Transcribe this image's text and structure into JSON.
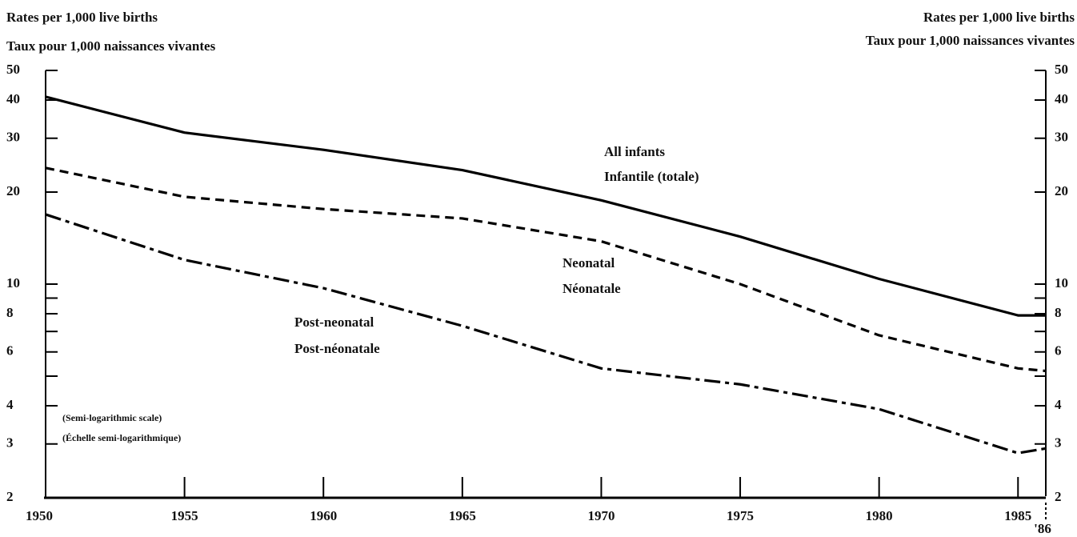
{
  "chart_data": {
    "type": "line",
    "log_scale": true,
    "y_axis_label": [
      "Rates per 1,000 live births",
      "Taux pour 1,000 naissances vivantes"
    ],
    "y2_axis_label": [
      "Rates per 1,000 live births",
      "Taux pour 1,000 naissances vivantes"
    ],
    "annotations": [
      {
        "lines": [
          "All infants",
          "Infantile (totale)"
        ]
      },
      {
        "lines": [
          "Neonatal",
          "Néonatale"
        ]
      },
      {
        "lines": [
          "Post-neonatal",
          "Post-néonatale"
        ]
      },
      {
        "lines": [
          "(Semi-logarithmic scale)",
          "(Échelle semi-logarithmique)"
        ]
      }
    ],
    "x": [
      1950,
      1955,
      1960,
      1965,
      1970,
      1975,
      1980,
      1985,
      1986
    ],
    "xlim": [
      1950,
      1986
    ],
    "xticks": [
      1950,
      1955,
      1960,
      1965,
      1970,
      1975,
      1980,
      1985,
      {
        "value": 1986,
        "label": "'86"
      }
    ],
    "ylim": [
      2,
      50
    ],
    "yticks": [
      2,
      3,
      4,
      6,
      8,
      10,
      20,
      30,
      40,
      50
    ],
    "y_minor_ticks": [
      5,
      7,
      9
    ],
    "y2lim": [
      2,
      50
    ],
    "y2ticks": [
      2,
      3,
      4,
      6,
      8,
      10,
      20,
      30,
      40,
      50
    ],
    "series": [
      {
        "name": "All infants",
        "color": "#000000",
        "dash": "solid",
        "values": [
          41,
          31.3,
          27.5,
          23.6,
          18.8,
          14.3,
          10.4,
          7.9,
          7.9
        ]
      },
      {
        "name": "Neonatal",
        "color": "#000000",
        "dash": "dashed",
        "values": [
          24,
          19.3,
          17.6,
          16.4,
          13.8,
          10,
          6.8,
          5.3,
          5.2
        ]
      },
      {
        "name": "Post-neonatal",
        "color": "#000000",
        "dash": "dashdot",
        "values": [
          16.9,
          12,
          9.7,
          7.3,
          5.3,
          4.7,
          3.9,
          2.8,
          2.9
        ]
      }
    ]
  }
}
